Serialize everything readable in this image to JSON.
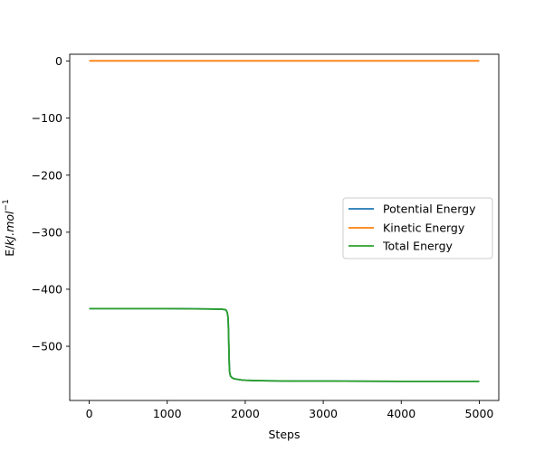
{
  "chart_data": {
    "type": "line",
    "xlabel": "Steps",
    "ylabel_main": "E/",
    "ylabel_italic": "kJ.mol",
    "ylabel_sup": "−1",
    "xlim": [
      -250,
      5250
    ],
    "ylim": [
      -595,
      12
    ],
    "xticks": [
      0,
      1000,
      2000,
      3000,
      4000,
      5000
    ],
    "xtick_labels": [
      "0",
      "1000",
      "2000",
      "3000",
      "4000",
      "5000"
    ],
    "yticks": [
      0,
      -100,
      -200,
      -300,
      -400,
      -500
    ],
    "ytick_labels": [
      "0",
      "−100",
      "−200",
      "−300",
      "−400",
      "−500"
    ],
    "grid": false,
    "legend_position": "center-right",
    "series": [
      {
        "name": "Potential Energy",
        "color": "#1f77b4",
        "x": [
          0,
          500,
          1000,
          1500,
          1700,
          1750,
          1760,
          1770,
          1780,
          1785,
          1790,
          1795,
          1800,
          1810,
          1830,
          1860,
          1900,
          1950,
          2000,
          2100,
          2300,
          2600,
          3000,
          4000,
          5000
        ],
        "y": [
          -434,
          -434,
          -434,
          -434.5,
          -435,
          -436,
          -438,
          -441,
          -450,
          -470,
          -500,
          -530,
          -545,
          -552,
          -555,
          -557,
          -558,
          -559,
          -559.5,
          -560,
          -560.5,
          -561,
          -561,
          -561.5,
          -561.5
        ]
      },
      {
        "name": "Kinetic Energy",
        "color": "#ff7f0e",
        "x": [
          0,
          1000,
          2000,
          3000,
          4000,
          5000
        ],
        "y": [
          0.4,
          0.4,
          0.4,
          0.4,
          0.4,
          0.4
        ]
      },
      {
        "name": "Total Energy",
        "color": "#2ca02c",
        "x": [
          0,
          500,
          1000,
          1500,
          1700,
          1750,
          1760,
          1770,
          1780,
          1785,
          1790,
          1795,
          1800,
          1810,
          1830,
          1860,
          1900,
          1950,
          2000,
          2100,
          2300,
          2600,
          3000,
          4000,
          5000
        ],
        "y": [
          -434,
          -434,
          -434,
          -434.5,
          -435,
          -436,
          -438,
          -441,
          -450,
          -470,
          -500,
          -530,
          -545,
          -552,
          -555,
          -557,
          -558,
          -559,
          -559.5,
          -560,
          -560.5,
          -561,
          -561,
          -561.5,
          -561.5
        ]
      }
    ]
  }
}
